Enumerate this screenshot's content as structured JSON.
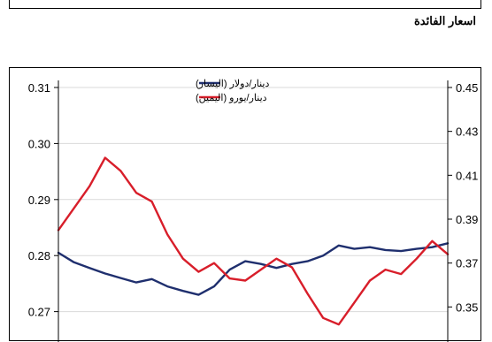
{
  "header": {
    "section_title": "اسعار الفائدة"
  },
  "chart_data": {
    "type": "line",
    "title": "",
    "xlabel": "",
    "ylabel": "",
    "grid": true,
    "legend_position": "top-center",
    "x": [
      0,
      4,
      8,
      12,
      16,
      20,
      24,
      28,
      32,
      36,
      40,
      44,
      48,
      52,
      56,
      60,
      64,
      68,
      72,
      76,
      80,
      84,
      88,
      92,
      96,
      100
    ],
    "axes": {
      "left": {
        "ylim": [
          0.263,
          0.31
        ],
        "ticks": [
          "0.31",
          "0.30",
          "0.29",
          "0.28",
          "0.27"
        ]
      },
      "right": {
        "ylim": [
          0.33,
          0.45
        ],
        "ticks": [
          "0.45",
          "0.43",
          "0.41",
          "0.39",
          "0.37",
          "0.35"
        ]
      }
    },
    "series": [
      {
        "name": "دينار/دولار (اليسار)",
        "axis": "left",
        "color": "#1f2f6e",
        "values": [
          0.2805,
          0.2788,
          0.2778,
          0.2768,
          0.276,
          0.2752,
          0.2758,
          0.2745,
          0.2737,
          0.273,
          0.2745,
          0.2775,
          0.279,
          0.2785,
          0.2778,
          0.2785,
          0.279,
          0.28,
          0.2818,
          0.2812,
          0.2815,
          0.281,
          0.2808,
          0.2812,
          0.2815,
          0.2822
        ]
      },
      {
        "name": "دينار/يورو (اليمين)",
        "axis": "right",
        "color": "#d81e2a",
        "values": [
          0.385,
          0.395,
          0.405,
          0.418,
          0.412,
          0.402,
          0.398,
          0.383,
          0.372,
          0.366,
          0.37,
          0.363,
          0.362,
          0.367,
          0.372,
          0.368,
          0.356,
          0.345,
          0.342,
          0.352,
          0.362,
          0.367,
          0.365,
          0.372,
          0.38,
          0.374
        ]
      }
    ]
  }
}
